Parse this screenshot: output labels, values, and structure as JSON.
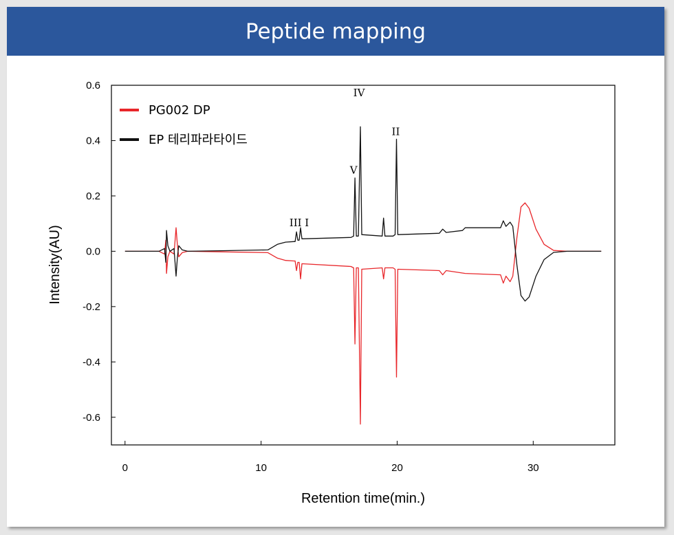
{
  "slide": {
    "title": "Peptide mapping",
    "title_bar_color": "#2b579c"
  },
  "chart_data": {
    "type": "line",
    "xlabel": "Retention time(min.)",
    "ylabel": "Intensity(AU)",
    "xlim": [
      -1,
      36
    ],
    "ylim": [
      -0.7,
      0.6
    ],
    "x_ticks": [
      0,
      10,
      20,
      30
    ],
    "y_ticks": [
      0.6,
      0.4,
      0.2,
      0.0,
      -0.2,
      -0.4,
      -0.6
    ],
    "x_tick_labels": [
      "0",
      "10",
      "20",
      "30"
    ],
    "y_tick_labels": [
      "0.6",
      "0.4",
      "0.2",
      "0.0",
      "-0.2",
      "-0.4",
      "-0.6"
    ],
    "grid": false,
    "legend_position": "top-left",
    "series": [
      {
        "name": "PG002 DP",
        "color": "#e8262a",
        "points": [
          [
            0,
            0.0
          ],
          [
            2.5,
            0.0
          ],
          [
            2.9,
            -0.01
          ],
          [
            3.0,
            0.04
          ],
          [
            3.05,
            -0.08
          ],
          [
            3.15,
            -0.02
          ],
          [
            3.3,
            0.0
          ],
          [
            3.6,
            -0.01
          ],
          [
            3.75,
            0.085
          ],
          [
            3.85,
            0.02
          ],
          [
            3.95,
            -0.02
          ],
          [
            4.2,
            -0.005
          ],
          [
            4.6,
            0.0
          ],
          [
            7.0,
            -0.002
          ],
          [
            10.5,
            -0.005
          ],
          [
            11.2,
            -0.025
          ],
          [
            11.8,
            -0.033
          ],
          [
            12.4,
            -0.035
          ],
          [
            12.5,
            -0.035
          ],
          [
            12.6,
            -0.07
          ],
          [
            12.7,
            -0.04
          ],
          [
            12.8,
            -0.04
          ],
          [
            12.9,
            -0.1
          ],
          [
            13.0,
            -0.045
          ],
          [
            16.6,
            -0.055
          ],
          [
            16.8,
            -0.06
          ],
          [
            16.9,
            -0.335
          ],
          [
            17.0,
            -0.06
          ],
          [
            17.15,
            -0.06
          ],
          [
            17.3,
            -0.625
          ],
          [
            17.4,
            -0.065
          ],
          [
            18.9,
            -0.06
          ],
          [
            19.0,
            -0.1
          ],
          [
            19.1,
            -0.06
          ],
          [
            19.7,
            -0.06
          ],
          [
            19.85,
            -0.065
          ],
          [
            19.95,
            -0.455
          ],
          [
            20.05,
            -0.065
          ],
          [
            23.1,
            -0.07
          ],
          [
            23.35,
            -0.085
          ],
          [
            23.6,
            -0.07
          ],
          [
            25.0,
            -0.08
          ],
          [
            27.6,
            -0.085
          ],
          [
            27.8,
            -0.115
          ],
          [
            28.0,
            -0.09
          ],
          [
            28.3,
            -0.11
          ],
          [
            28.5,
            -0.09
          ],
          [
            28.8,
            0.05
          ],
          [
            29.1,
            0.16
          ],
          [
            29.4,
            0.175
          ],
          [
            29.7,
            0.155
          ],
          [
            30.2,
            0.08
          ],
          [
            30.8,
            0.025
          ],
          [
            31.5,
            0.003
          ],
          [
            32.5,
            0.0
          ],
          [
            35,
            0.0
          ]
        ]
      },
      {
        "name": "EP 테리파라타이드",
        "color": "#111111",
        "points": [
          [
            0,
            0.0
          ],
          [
            2.5,
            0.0
          ],
          [
            2.9,
            0.01
          ],
          [
            3.0,
            -0.04
          ],
          [
            3.05,
            0.075
          ],
          [
            3.15,
            0.02
          ],
          [
            3.3,
            0.0
          ],
          [
            3.6,
            0.01
          ],
          [
            3.75,
            -0.09
          ],
          [
            3.85,
            -0.02
          ],
          [
            3.95,
            0.02
          ],
          [
            4.2,
            0.005
          ],
          [
            4.6,
            0.0
          ],
          [
            7.0,
            0.002
          ],
          [
            10.5,
            0.005
          ],
          [
            11.2,
            0.025
          ],
          [
            11.8,
            0.033
          ],
          [
            12.4,
            0.035
          ],
          [
            12.5,
            0.035
          ],
          [
            12.6,
            0.07
          ],
          [
            12.7,
            0.04
          ],
          [
            12.8,
            0.04
          ],
          [
            12.9,
            0.085
          ],
          [
            13.0,
            0.045
          ],
          [
            16.6,
            0.05
          ],
          [
            16.8,
            0.055
          ],
          [
            16.9,
            0.265
          ],
          [
            17.0,
            0.055
          ],
          [
            17.15,
            0.055
          ],
          [
            17.3,
            0.45
          ],
          [
            17.4,
            0.06
          ],
          [
            18.9,
            0.055
          ],
          [
            19.0,
            0.12
          ],
          [
            19.1,
            0.055
          ],
          [
            19.7,
            0.055
          ],
          [
            19.85,
            0.06
          ],
          [
            19.95,
            0.405
          ],
          [
            20.05,
            0.06
          ],
          [
            23.1,
            0.065
          ],
          [
            23.35,
            0.08
          ],
          [
            23.6,
            0.068
          ],
          [
            24.8,
            0.075
          ],
          [
            25.0,
            0.085
          ],
          [
            27.6,
            0.085
          ],
          [
            27.8,
            0.11
          ],
          [
            28.0,
            0.09
          ],
          [
            28.3,
            0.105
          ],
          [
            28.5,
            0.09
          ],
          [
            28.8,
            -0.05
          ],
          [
            29.1,
            -0.16
          ],
          [
            29.4,
            -0.18
          ],
          [
            29.7,
            -0.165
          ],
          [
            30.2,
            -0.09
          ],
          [
            30.8,
            -0.03
          ],
          [
            31.5,
            -0.004
          ],
          [
            32.5,
            0.0
          ],
          [
            35,
            0.0
          ]
        ]
      }
    ],
    "annotations": [
      {
        "text": "III I",
        "x": 12.8,
        "y": 0.09
      },
      {
        "text": "V",
        "x": 16.8,
        "y": 0.28
      },
      {
        "text": "IV",
        "x": 17.2,
        "y": 0.56
      },
      {
        "text": "II",
        "x": 19.9,
        "y": 0.42
      }
    ]
  }
}
